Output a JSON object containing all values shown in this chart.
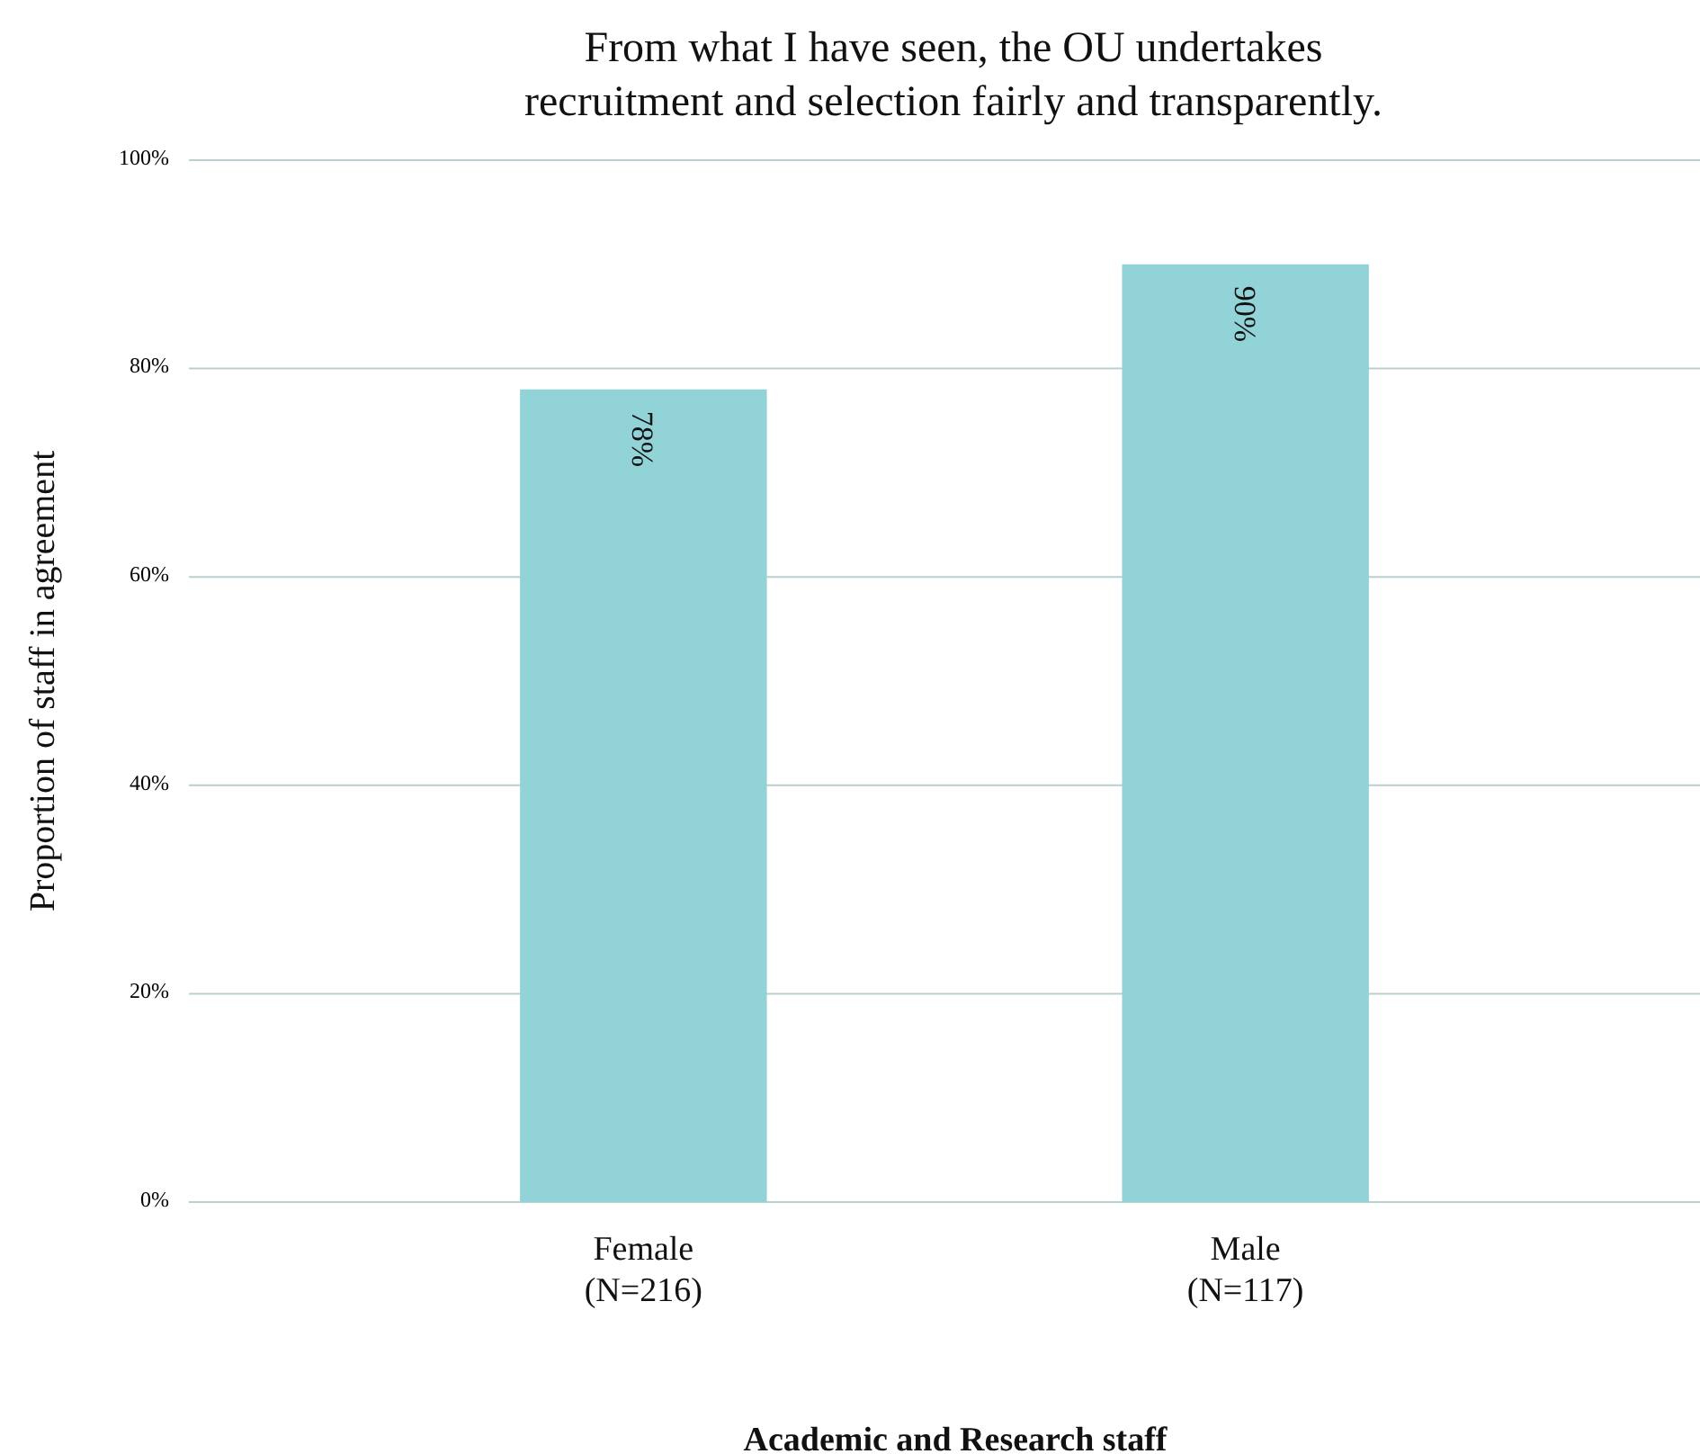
{
  "chart_data": {
    "type": "bar",
    "title": "From what I have seen, the OU undertakes\nrecruitment and selection fairly and transparently.",
    "xlabel": "Academic and Research staff",
    "ylabel": "Proportion of staff in agreement",
    "categories": [
      "Female\n(N=216)",
      "Male\n(N=117)"
    ],
    "values": [
      78,
      90
    ],
    "value_labels": [
      "78%",
      "90%"
    ],
    "color": "#92d3d7",
    "ylim": [
      0,
      100
    ],
    "yticks": [
      {
        "value": 0,
        "label": "0%"
      },
      {
        "value": 20,
        "label": "20%"
      },
      {
        "value": 40,
        "label": "40%"
      },
      {
        "value": 60,
        "label": "60%"
      },
      {
        "value": 80,
        "label": "80%"
      },
      {
        "value": 100,
        "label": "100%"
      }
    ],
    "grid": "y"
  }
}
